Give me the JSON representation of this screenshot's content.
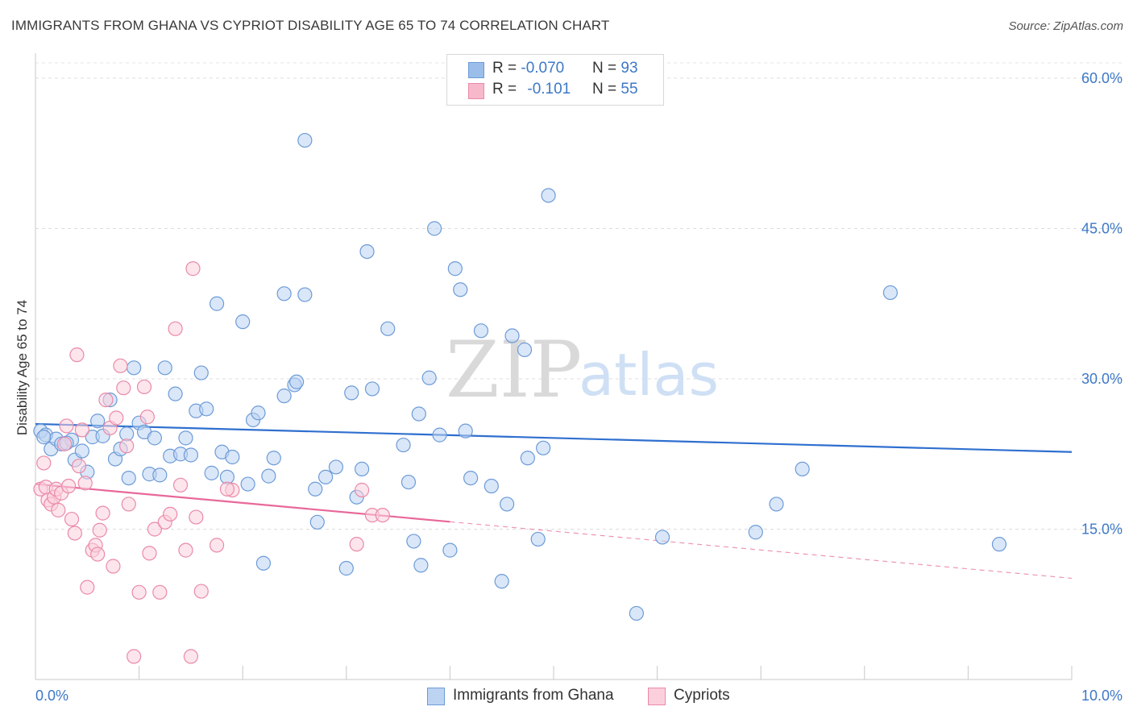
{
  "title": "IMMIGRANTS FROM GHANA VS CYPRIOT DISABILITY AGE 65 TO 74 CORRELATION CHART",
  "source": "Source: ZipAtlas.com",
  "watermark": {
    "zip": "ZIP",
    "atlas": "atlas"
  },
  "legend": {
    "r_prefix": "R = ",
    "n_prefix": "N = ",
    "rows": [
      {
        "r": "-0.070",
        "n": "93",
        "color": "#9bbde9",
        "border": "#6d9bd8"
      },
      {
        "r": "-0.101",
        "n": "55",
        "color": "#f7b8cb",
        "border": "#e98aa8"
      }
    ]
  },
  "bottom_legend": [
    {
      "label": "Immigrants from Ghana",
      "color": "#bcd3f2",
      "border": "#6d9bd8"
    },
    {
      "label": "Cypriots",
      "color": "#fbd0dc",
      "border": "#e98aa8"
    }
  ],
  "chart_data": {
    "type": "scatter",
    "title": "IMMIGRANTS FROM GHANA VS CYPRIOT DISABILITY AGE 65 TO 74 CORRELATION CHART",
    "xlabel": "",
    "ylabel": "Disability Age 65 to 74",
    "xlim": [
      0,
      10
    ],
    "ylim": [
      0,
      60
    ],
    "x_tick_labels": [
      "0.0%",
      "10.0%"
    ],
    "y_ticks": [
      15,
      30,
      45,
      60
    ],
    "y_tick_labels": [
      "15.0%",
      "30.0%",
      "45.0%",
      "60.0%"
    ],
    "grid": "horizontal dashed",
    "series": [
      {
        "name": "Immigrants from Ghana",
        "color": "#6d9bd8",
        "fill": "#bcd3f2",
        "trend": {
          "x": [
            0.0,
            10.0
          ],
          "y": [
            25.5,
            22.7
          ],
          "dashed_from": null,
          "color": "#2f6fcf"
        },
        "points": [
          [
            0.05,
            24.8
          ],
          [
            0.1,
            24.4
          ],
          [
            0.15,
            23.0
          ],
          [
            0.2,
            24.0
          ],
          [
            0.25,
            23.5
          ],
          [
            0.35,
            23.9
          ],
          [
            0.38,
            21.9
          ],
          [
            0.45,
            22.8
          ],
          [
            0.5,
            20.7
          ],
          [
            0.55,
            24.2
          ],
          [
            0.6,
            25.8
          ],
          [
            0.65,
            24.3
          ],
          [
            0.72,
            27.9
          ],
          [
            0.77,
            22.0
          ],
          [
            0.82,
            23.0
          ],
          [
            0.88,
            24.5
          ],
          [
            0.9,
            20.1
          ],
          [
            0.95,
            31.1
          ],
          [
            1.0,
            25.6
          ],
          [
            1.05,
            24.7
          ],
          [
            1.1,
            20.5
          ],
          [
            1.15,
            24.1
          ],
          [
            1.2,
            20.4
          ],
          [
            1.25,
            31.1
          ],
          [
            1.3,
            22.3
          ],
          [
            1.35,
            28.5
          ],
          [
            1.4,
            22.5
          ],
          [
            1.5,
            22.4
          ],
          [
            1.45,
            24.1
          ],
          [
            1.55,
            26.8
          ],
          [
            1.6,
            30.6
          ],
          [
            1.65,
            27.0
          ],
          [
            1.7,
            20.6
          ],
          [
            1.75,
            37.5
          ],
          [
            1.8,
            22.7
          ],
          [
            1.85,
            20.2
          ],
          [
            1.9,
            22.2
          ],
          [
            2.0,
            35.7
          ],
          [
            2.05,
            19.5
          ],
          [
            2.1,
            25.9
          ],
          [
            2.15,
            26.6
          ],
          [
            2.2,
            11.6
          ],
          [
            2.25,
            20.3
          ],
          [
            2.3,
            22.1
          ],
          [
            2.4,
            38.5
          ],
          [
            2.4,
            28.3
          ],
          [
            2.5,
            29.4
          ],
          [
            2.52,
            29.7
          ],
          [
            2.6,
            38.4
          ],
          [
            2.7,
            19.0
          ],
          [
            2.72,
            15.7
          ],
          [
            2.8,
            20.2
          ],
          [
            2.9,
            21.2
          ],
          [
            3.0,
            11.1
          ],
          [
            3.05,
            28.6
          ],
          [
            3.1,
            18.2
          ],
          [
            3.15,
            21.0
          ],
          [
            3.2,
            42.7
          ],
          [
            3.25,
            29.0
          ],
          [
            3.4,
            35.0
          ],
          [
            3.55,
            23.4
          ],
          [
            3.6,
            19.7
          ],
          [
            3.65,
            13.8
          ],
          [
            3.7,
            26.5
          ],
          [
            3.72,
            11.4
          ],
          [
            3.8,
            30.1
          ],
          [
            3.85,
            45.0
          ],
          [
            3.9,
            24.4
          ],
          [
            4.0,
            12.9
          ],
          [
            4.05,
            41.0
          ],
          [
            4.1,
            38.9
          ],
          [
            4.15,
            24.8
          ],
          [
            4.2,
            20.1
          ],
          [
            4.3,
            34.8
          ],
          [
            4.4,
            19.3
          ],
          [
            4.5,
            9.8
          ],
          [
            4.55,
            17.5
          ],
          [
            4.6,
            34.3
          ],
          [
            4.72,
            32.9
          ],
          [
            4.75,
            22.1
          ],
          [
            4.85,
            14.0
          ],
          [
            4.9,
            23.1
          ],
          [
            4.95,
            48.3
          ],
          [
            5.8,
            6.6
          ],
          [
            6.05,
            14.2
          ],
          [
            6.95,
            14.7
          ],
          [
            7.15,
            17.5
          ],
          [
            7.4,
            21.0
          ],
          [
            8.25,
            38.6
          ],
          [
            9.3,
            13.5
          ],
          [
            2.6,
            53.8
          ],
          [
            0.08,
            24.2
          ],
          [
            0.3,
            23.6
          ]
        ]
      },
      {
        "name": "Cypriots",
        "color": "#e98aa8",
        "fill": "#fbd0dc",
        "trend": {
          "x": [
            0.0,
            10.0
          ],
          "y": [
            19.5,
            10.1
          ],
          "dashed_from": 4.0,
          "color": "#e8689a"
        },
        "points": [
          [
            0.05,
            19.0
          ],
          [
            0.08,
            21.6
          ],
          [
            0.1,
            19.2
          ],
          [
            0.12,
            17.9
          ],
          [
            0.15,
            17.5
          ],
          [
            0.18,
            18.2
          ],
          [
            0.2,
            19.0
          ],
          [
            0.22,
            16.9
          ],
          [
            0.25,
            18.6
          ],
          [
            0.28,
            23.5
          ],
          [
            0.3,
            25.3
          ],
          [
            0.32,
            19.3
          ],
          [
            0.35,
            16.0
          ],
          [
            0.38,
            14.6
          ],
          [
            0.4,
            32.4
          ],
          [
            0.42,
            21.3
          ],
          [
            0.45,
            24.9
          ],
          [
            0.48,
            19.6
          ],
          [
            0.5,
            9.2
          ],
          [
            0.55,
            12.9
          ],
          [
            0.58,
            13.4
          ],
          [
            0.6,
            12.5
          ],
          [
            0.62,
            14.9
          ],
          [
            0.65,
            16.6
          ],
          [
            0.68,
            27.9
          ],
          [
            0.72,
            25.1
          ],
          [
            0.75,
            11.3
          ],
          [
            0.78,
            26.1
          ],
          [
            0.82,
            31.3
          ],
          [
            0.85,
            29.1
          ],
          [
            0.88,
            23.3
          ],
          [
            0.9,
            17.5
          ],
          [
            0.95,
            2.3
          ],
          [
            1.0,
            8.7
          ],
          [
            1.05,
            29.2
          ],
          [
            1.08,
            26.2
          ],
          [
            1.1,
            12.6
          ],
          [
            1.15,
            15.0
          ],
          [
            1.2,
            8.7
          ],
          [
            1.25,
            15.7
          ],
          [
            1.3,
            16.5
          ],
          [
            1.35,
            35.0
          ],
          [
            1.4,
            19.4
          ],
          [
            1.45,
            12.9
          ],
          [
            1.5,
            2.3
          ],
          [
            1.52,
            41.0
          ],
          [
            1.55,
            16.2
          ],
          [
            1.6,
            8.8
          ],
          [
            1.75,
            13.4
          ],
          [
            1.9,
            18.9
          ],
          [
            3.1,
            13.5
          ],
          [
            3.15,
            18.9
          ],
          [
            3.25,
            16.4
          ],
          [
            3.35,
            16.4
          ],
          [
            1.85,
            19.0
          ]
        ]
      }
    ]
  }
}
